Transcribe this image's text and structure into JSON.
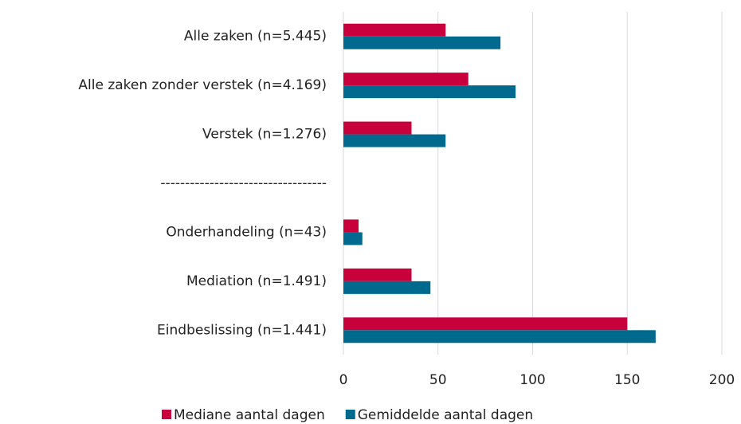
{
  "chart_data": {
    "type": "hbar",
    "categories": [
      "Alle zaken (n=5.445)",
      "Alle zaken zonder verstek (n=4.169)",
      "Verstek (n=1.276)",
      "----------------------------------",
      "Onderhandeling (n=43)",
      "Mediation (n=1.491)",
      "Eindbeslissing (n=1.441)"
    ],
    "series": [
      {
        "name": "Mediane aantal dagen",
        "color": "#c8003c",
        "values": [
          54,
          66,
          36,
          null,
          8,
          36,
          150
        ]
      },
      {
        "name": "Gemiddelde aantal dagen",
        "color": "#006a8e",
        "values": [
          83,
          91,
          54,
          null,
          10,
          46,
          165
        ]
      }
    ],
    "xlim": [
      0,
      200
    ],
    "xticks": [
      0,
      50,
      100,
      150,
      200
    ],
    "grid": true,
    "legend": "bottom"
  }
}
